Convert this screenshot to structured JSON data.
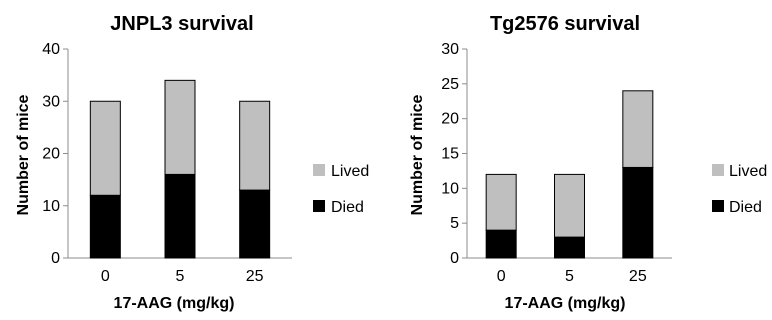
{
  "chart_data": [
    {
      "type": "bar",
      "stacked": true,
      "title": "JNPL3 survival",
      "xlabel": "17-AAG (mg/kg)",
      "ylabel": "Number of mice",
      "categories": [
        "0",
        "5",
        "25"
      ],
      "ylim": [
        0,
        40
      ],
      "yticks": [
        0,
        10,
        20,
        30,
        40
      ],
      "grid": false,
      "legend_position": "right",
      "series": [
        {
          "name": "Died",
          "color": "#000000",
          "values": [
            12,
            16,
            13
          ]
        },
        {
          "name": "Lived",
          "color": "#bfbfbf",
          "values": [
            18,
            18,
            17
          ]
        }
      ],
      "legend": [
        {
          "name": "Lived",
          "color": "#bfbfbf"
        },
        {
          "name": "Died",
          "color": "#000000"
        }
      ]
    },
    {
      "type": "bar",
      "stacked": true,
      "title": "Tg2576 survival",
      "xlabel": "17-AAG (mg/kg)",
      "ylabel": "Number of mice",
      "categories": [
        "0",
        "5",
        "25"
      ],
      "ylim": [
        0,
        30
      ],
      "yticks": [
        0,
        5,
        10,
        15,
        20,
        25,
        30
      ],
      "grid": false,
      "legend_position": "right",
      "series": [
        {
          "name": "Died",
          "color": "#000000",
          "values": [
            4,
            3,
            13
          ]
        },
        {
          "name": "Lived",
          "color": "#bfbfbf",
          "values": [
            8,
            9,
            11
          ]
        }
      ],
      "legend": [
        {
          "name": "Lived",
          "color": "#bfbfbf"
        },
        {
          "name": "Died",
          "color": "#000000"
        }
      ]
    }
  ]
}
